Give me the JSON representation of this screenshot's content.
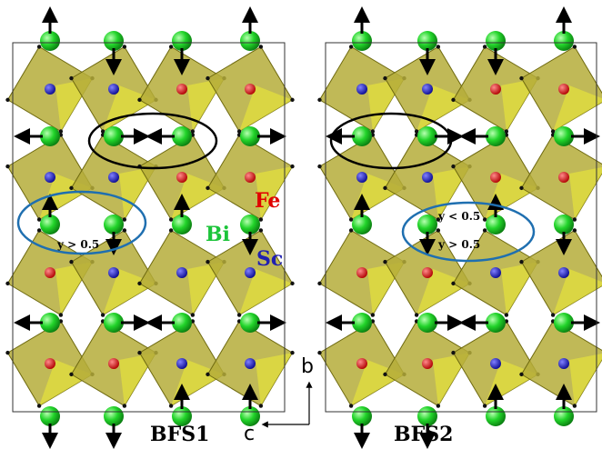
{
  "labels": {
    "fe": "Fe",
    "bi": "Bi",
    "sc": "Sc"
  },
  "panel1": {
    "title": "BFS1",
    "note": "y > 0.5"
  },
  "panel2": {
    "title": "BFS2",
    "note_upper": "y < 0.5",
    "note_lower": "y > 0.5"
  },
  "axes": {
    "b": "b",
    "c": "c"
  }
}
